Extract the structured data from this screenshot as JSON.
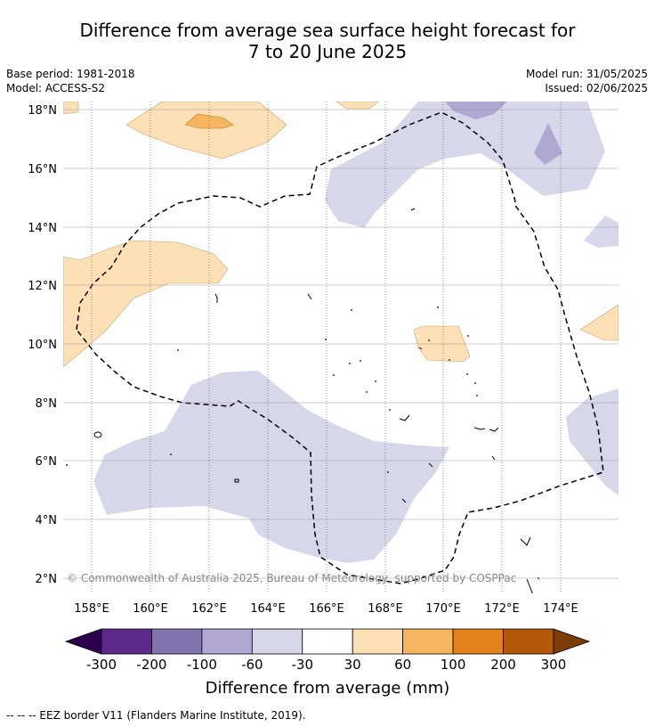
{
  "title_line1": "Difference from average sea surface height forecast for",
  "title_line2": "7 to 20 June 2025",
  "meta": {
    "base_period": "Base period: 1981-2018",
    "model": "Model: ACCESS-S2",
    "model_run": "Model run: 31/05/2025",
    "issued": "Issued: 02/06/2025"
  },
  "map": {
    "lat_labels": [
      "18°N",
      "16°N",
      "14°N",
      "12°N",
      "10°N",
      "8°N",
      "6°N",
      "4°N",
      "2°N"
    ],
    "lon_labels": [
      "158°E",
      "160°E",
      "162°E",
      "164°E",
      "166°E",
      "168°E",
      "170°E",
      "172°E",
      "174°E"
    ],
    "copyright": "© Commonwealth of Australia 2025, Bureau of Meteorology, supported by COSPPac"
  },
  "colorbar": {
    "tick_labels": [
      "-300",
      "-200",
      "-100",
      "-60",
      "-30",
      "30",
      "60",
      "100",
      "200",
      "300"
    ],
    "label": "Difference from average (mm)",
    "colors": [
      "#2d004b",
      "#5b2a8c",
      "#8473b1",
      "#b0a8d2",
      "#d7d7ea",
      "#ffffff",
      "#fde0b6",
      "#f8b560",
      "#e3821a",
      "#b35806",
      "#7f3b08"
    ]
  },
  "footnote": "--  --  -- EEZ border V11 (Flanders Marine Institute, 2019)."
}
